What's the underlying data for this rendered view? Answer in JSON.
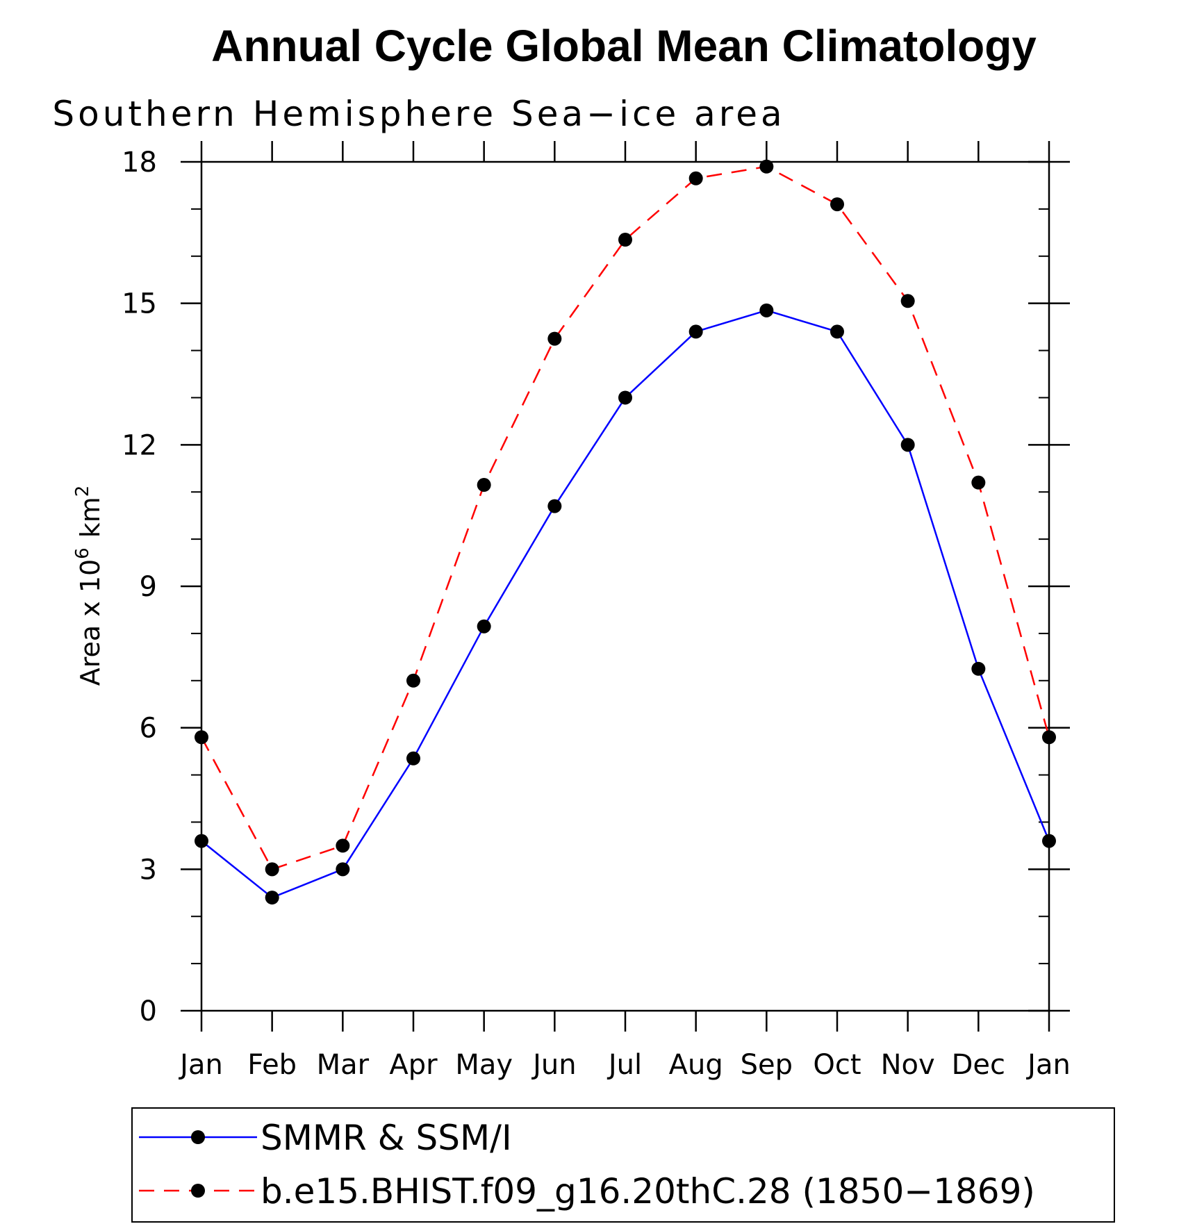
{
  "chart_data": {
    "type": "line",
    "title": "Annual Cycle Global Mean Climatology",
    "subtitle": "Southern Hemisphere Sea−ice area",
    "ylabel": "Area x 10",
    "ylabel_exp": "6",
    "ylabel_unit": "km",
    "ylabel_unit_exp": "2",
    "ylim": [
      0,
      18
    ],
    "yticks": [
      0,
      3,
      6,
      9,
      12,
      15,
      18
    ],
    "yticks_minor": [
      1,
      2,
      4,
      5,
      7,
      8,
      10,
      11,
      13,
      14,
      16,
      17
    ],
    "categories": [
      "Jan",
      "Feb",
      "Mar",
      "Apr",
      "May",
      "Jun",
      "Jul",
      "Aug",
      "Sep",
      "Oct",
      "Nov",
      "Dec",
      "Jan"
    ],
    "grid": false,
    "legend_position": "bottom",
    "series": [
      {
        "name": "SMMR & SSM/I",
        "color": "#0000ff",
        "dash": "solid",
        "marker": "black-dot",
        "values": [
          3.6,
          2.4,
          3.0,
          5.35,
          8.15,
          10.7,
          13.0,
          14.4,
          14.85,
          14.4,
          12.0,
          7.25,
          3.6
        ]
      },
      {
        "name": "b.e15.BHIST.f09_g16.20thC.28 (1850−1869)",
        "color": "#ff0000",
        "dash": "dashed",
        "marker": "black-dot",
        "values": [
          5.8,
          3.0,
          3.5,
          7.0,
          11.15,
          14.25,
          16.35,
          17.65,
          17.9,
          17.1,
          15.05,
          11.2,
          5.8
        ]
      }
    ]
  }
}
